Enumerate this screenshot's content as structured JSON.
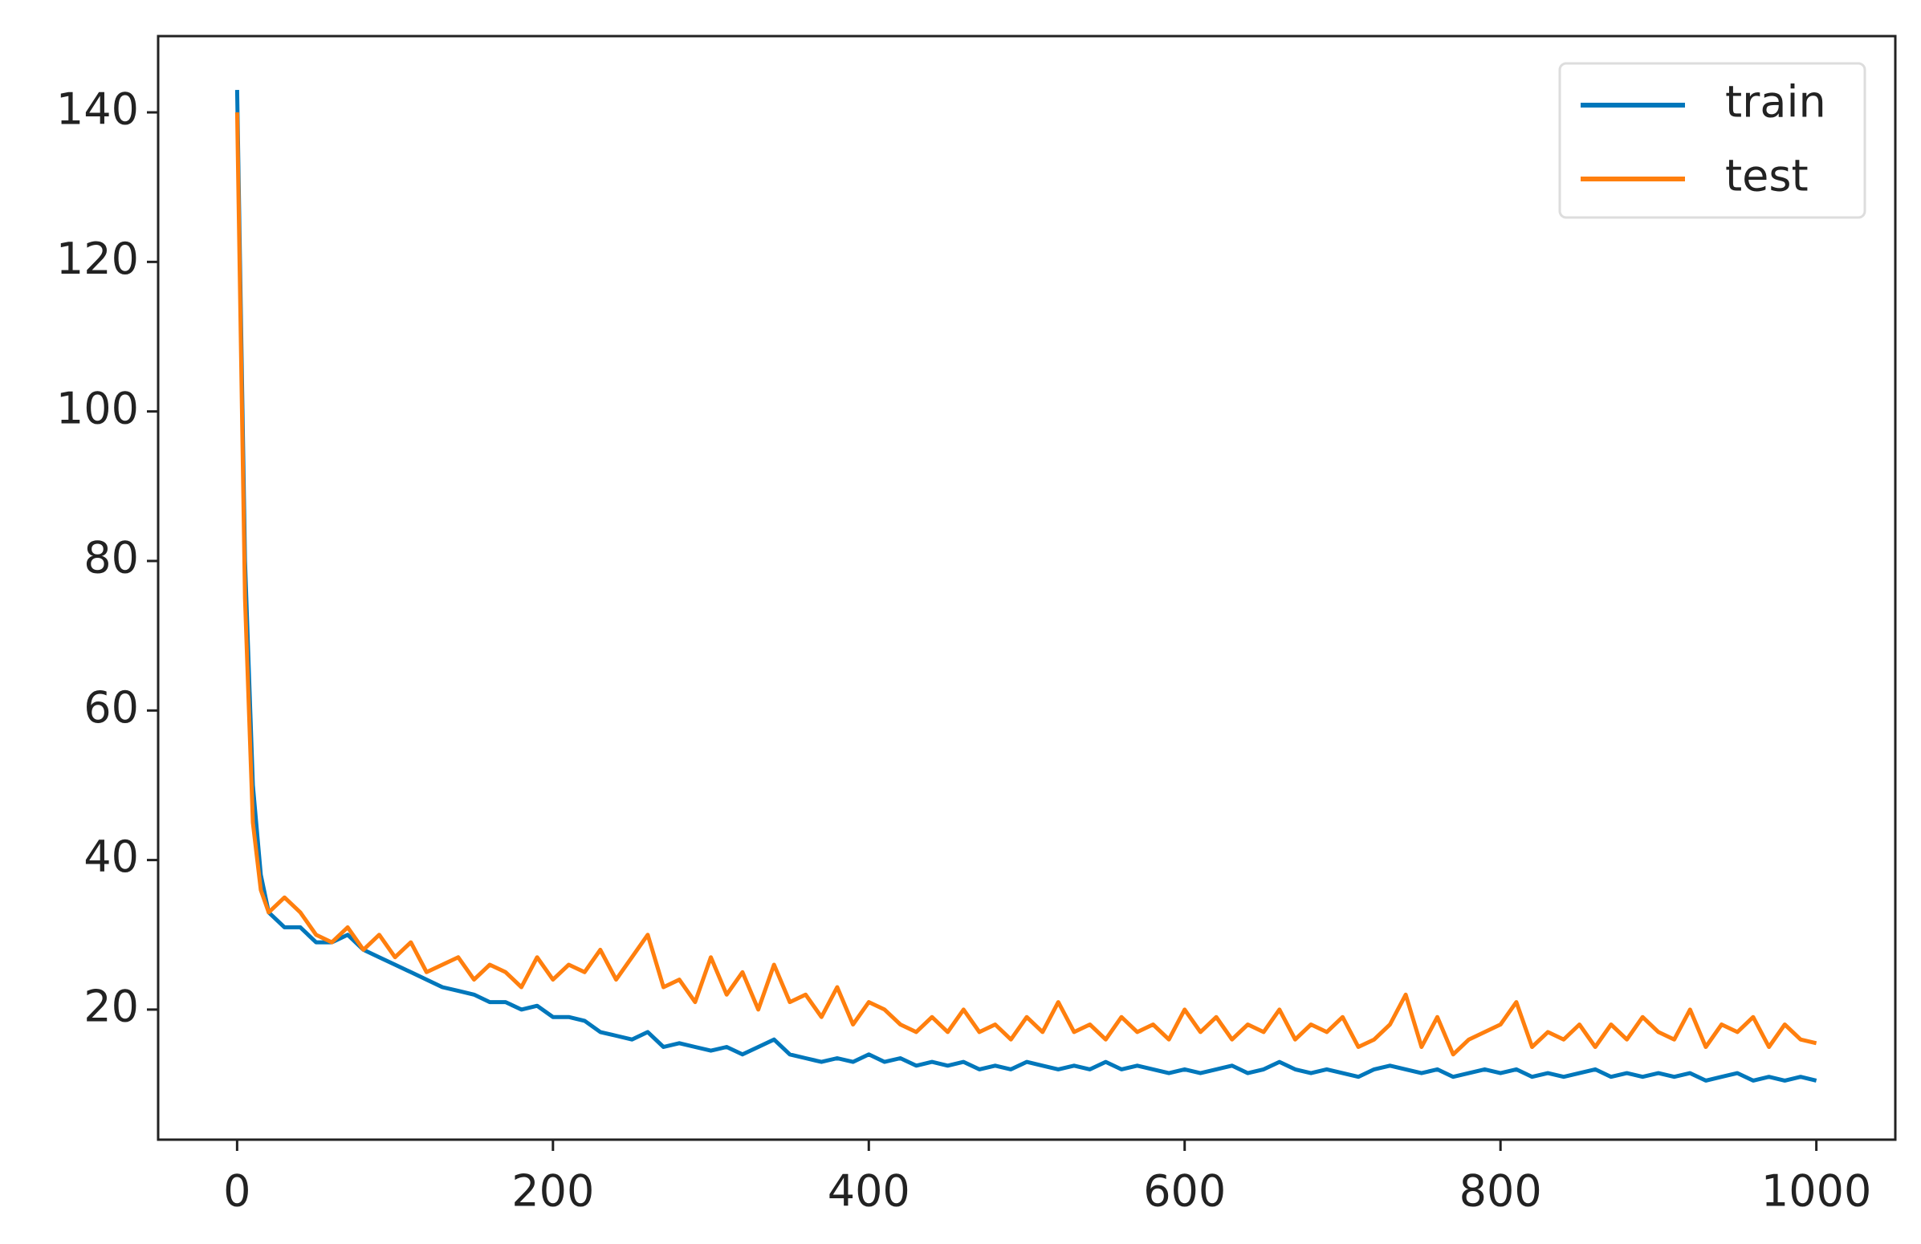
{
  "chart_data": {
    "type": "line",
    "x": [
      0,
      5,
      10,
      15,
      20,
      30,
      40,
      50,
      60,
      70,
      80,
      90,
      100,
      110,
      120,
      130,
      140,
      150,
      160,
      170,
      180,
      190,
      200,
      210,
      220,
      230,
      240,
      250,
      260,
      270,
      280,
      290,
      300,
      310,
      320,
      330,
      340,
      350,
      360,
      370,
      380,
      390,
      400,
      410,
      420,
      430,
      440,
      450,
      460,
      470,
      480,
      490,
      500,
      510,
      520,
      530,
      540,
      550,
      560,
      570,
      580,
      590,
      600,
      610,
      620,
      630,
      640,
      650,
      660,
      670,
      680,
      690,
      700,
      710,
      720,
      730,
      740,
      750,
      760,
      770,
      780,
      790,
      800,
      810,
      820,
      830,
      840,
      850,
      860,
      870,
      880,
      890,
      900,
      910,
      920,
      930,
      940,
      950,
      960,
      970,
      980,
      990,
      1000
    ],
    "series": [
      {
        "name": "train",
        "color": "#0077bb",
        "values": [
          143,
          80,
          50,
          38,
          33,
          31,
          31,
          29,
          29,
          30,
          28,
          27,
          26,
          25,
          24,
          23,
          22.5,
          22,
          21,
          21,
          20,
          20.5,
          19,
          19,
          18.5,
          17,
          16.5,
          16,
          17,
          15,
          15.5,
          15,
          14.5,
          15,
          14,
          15,
          16,
          14,
          13.5,
          13,
          13.5,
          13,
          14,
          13,
          13.5,
          12.5,
          13,
          12.5,
          13,
          12,
          12.5,
          12,
          13,
          12.5,
          12,
          12.5,
          12,
          13,
          12,
          12.5,
          12,
          11.5,
          12,
          11.5,
          12,
          12.5,
          11.5,
          12,
          13,
          12,
          11.5,
          12,
          11.5,
          11,
          12,
          12.5,
          12,
          11.5,
          12,
          11,
          11.5,
          12,
          11.5,
          12,
          11,
          11.5,
          11,
          11.5,
          12,
          11,
          11.5,
          11,
          11.5,
          11,
          11.5,
          10.5,
          11,
          11.5,
          10.5,
          11,
          10.5,
          11,
          10.5
        ]
      },
      {
        "name": "test",
        "color": "#ff7f0e",
        "values": [
          140,
          75,
          45,
          36,
          33,
          35,
          33,
          30,
          29,
          31,
          28,
          30,
          27,
          29,
          25,
          26,
          27,
          24,
          26,
          25,
          23,
          27,
          24,
          26,
          25,
          28,
          24,
          27,
          30,
          23,
          24,
          21,
          27,
          22,
          25,
          20,
          26,
          21,
          22,
          19,
          23,
          18,
          21,
          20,
          18,
          17,
          19,
          17,
          20,
          17,
          18,
          16,
          19,
          17,
          21,
          17,
          18,
          16,
          19,
          17,
          18,
          16,
          20,
          17,
          19,
          16,
          18,
          17,
          20,
          16,
          18,
          17,
          19,
          15,
          16,
          18,
          22,
          15,
          19,
          14,
          16,
          17,
          18,
          21,
          15,
          17,
          16,
          18,
          15,
          18,
          16,
          19,
          17,
          16,
          20,
          15,
          18,
          17,
          19,
          15,
          18,
          16,
          15.5
        ]
      }
    ],
    "xlim": [
      -50,
      1050
    ],
    "ylim": [
      2.6,
      150.2
    ],
    "xticks": [
      0,
      200,
      400,
      600,
      800,
      1000
    ],
    "yticks": [
      20,
      40,
      60,
      80,
      100,
      120,
      140
    ],
    "legend": "upper right"
  }
}
